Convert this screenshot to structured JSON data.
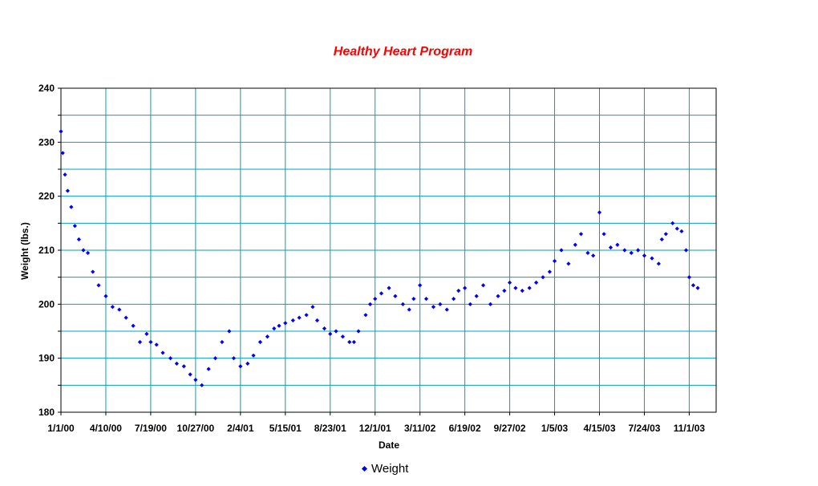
{
  "chart_data": {
    "type": "scatter",
    "title": "Healthy Heart Program",
    "xlabel": "Date",
    "ylabel": "Weight (lbs.)",
    "ylim": [
      180,
      240
    ],
    "xlim": [
      "2000-01-01",
      "2003-12-31"
    ],
    "y_ticks": [
      180,
      190,
      200,
      210,
      220,
      230,
      240
    ],
    "x_ticks": [
      "2000-01-01",
      "2000-04-10",
      "2000-07-19",
      "2000-10-27",
      "2001-02-04",
      "2001-05-15",
      "2001-08-23",
      "2001-12-01",
      "2002-03-11",
      "2002-06-19",
      "2002-09-27",
      "2003-01-05",
      "2003-04-15",
      "2003-07-24",
      "2003-11-01"
    ],
    "x_tick_labels": [
      "1/1/00",
      "4/10/00",
      "7/19/00",
      "10/27/00",
      "2/4/01",
      "5/15/01",
      "8/23/01",
      "12/1/01",
      "3/11/02",
      "6/19/02",
      "9/27/02",
      "1/5/03",
      "4/15/03",
      "7/24/03",
      "11/1/03"
    ],
    "grid": true,
    "plot_background": "#ffffff",
    "grid_color": "#00a0c0",
    "legend_position": "bottom",
    "series": [
      {
        "name": "Weight",
        "color": "#0000ff",
        "marker": "diamond",
        "x": [
          "2000-01-01",
          "2000-01-05",
          "2000-01-10",
          "2000-01-16",
          "2000-01-24",
          "2000-02-01",
          "2000-02-10",
          "2000-02-20",
          "2000-03-01",
          "2000-03-12",
          "2000-03-25",
          "2000-04-10",
          "2000-04-25",
          "2000-05-10",
          "2000-05-25",
          "2000-06-10",
          "2000-06-25",
          "2000-07-10",
          "2000-07-19",
          "2000-08-01",
          "2000-08-15",
          "2000-09-01",
          "2000-09-15",
          "2000-10-01",
          "2000-10-15",
          "2000-10-27",
          "2000-11-10",
          "2000-11-25",
          "2000-12-10",
          "2000-12-25",
          "2001-01-10",
          "2001-01-20",
          "2001-02-04",
          "2001-02-20",
          "2001-03-05",
          "2001-03-20",
          "2001-04-05",
          "2001-04-20",
          "2001-05-01",
          "2001-05-15",
          "2001-06-01",
          "2001-06-15",
          "2001-07-01",
          "2001-07-15",
          "2001-07-25",
          "2001-08-10",
          "2001-08-23",
          "2001-09-05",
          "2001-09-20",
          "2001-10-05",
          "2001-10-15",
          "2001-10-25",
          "2001-11-10",
          "2001-11-20",
          "2001-12-01",
          "2001-12-15",
          "2002-01-01",
          "2002-01-15",
          "2002-02-01",
          "2002-02-15",
          "2002-02-25",
          "2002-03-11",
          "2002-03-25",
          "2002-04-10",
          "2002-04-25",
          "2002-05-10",
          "2002-05-25",
          "2002-06-05",
          "2002-06-19",
          "2002-07-01",
          "2002-07-15",
          "2002-07-30",
          "2002-08-15",
          "2002-09-01",
          "2002-09-15",
          "2002-09-27",
          "2002-10-10",
          "2002-10-25",
          "2002-11-10",
          "2002-11-25",
          "2002-12-10",
          "2002-12-25",
          "2003-01-05",
          "2003-01-20",
          "2003-02-05",
          "2003-02-20",
          "2003-03-05",
          "2003-03-20",
          "2003-04-01",
          "2003-04-15",
          "2003-04-25",
          "2003-05-10",
          "2003-05-25",
          "2003-06-10",
          "2003-06-25",
          "2003-07-10",
          "2003-07-24",
          "2003-08-10",
          "2003-08-25",
          "2003-09-01",
          "2003-09-10",
          "2003-09-25",
          "2003-10-05",
          "2003-10-15",
          "2003-10-25",
          "2003-11-01",
          "2003-11-10",
          "2003-11-20"
        ],
        "y": [
          232.0,
          228.0,
          224.0,
          221.0,
          218.0,
          214.5,
          212.0,
          210.0,
          209.5,
          206.0,
          203.5,
          201.5,
          199.5,
          199.0,
          197.5,
          196.0,
          193.0,
          194.5,
          193.0,
          192.5,
          191.0,
          190.0,
          189.0,
          188.5,
          187.0,
          186.0,
          185.0,
          188.0,
          190.0,
          193.0,
          195.0,
          190.0,
          188.5,
          189.0,
          190.5,
          193.0,
          194.0,
          195.5,
          196.0,
          196.5,
          197.0,
          197.5,
          198.0,
          199.5,
          197.0,
          195.5,
          194.5,
          195.0,
          194.0,
          193.0,
          193.0,
          195.0,
          198.0,
          200.0,
          201.0,
          202.0,
          203.0,
          201.5,
          200.0,
          199.0,
          201.0,
          203.5,
          201.0,
          199.5,
          200.0,
          199.0,
          201.0,
          202.5,
          203.0,
          200.0,
          201.5,
          203.5,
          200.0,
          201.5,
          202.5,
          204.0,
          203.0,
          202.5,
          203.0,
          204.0,
          205.0,
          206.0,
          208.0,
          210.0,
          207.5,
          211.0,
          213.0,
          209.5,
          209.0,
          217.0,
          213.0,
          210.5,
          211.0,
          210.0,
          209.5,
          210.0,
          209.0,
          208.5,
          207.5,
          212.0,
          213.0,
          215.0,
          214.0,
          213.5,
          210.0,
          205.0,
          203.5,
          203.0
        ]
      }
    ]
  }
}
